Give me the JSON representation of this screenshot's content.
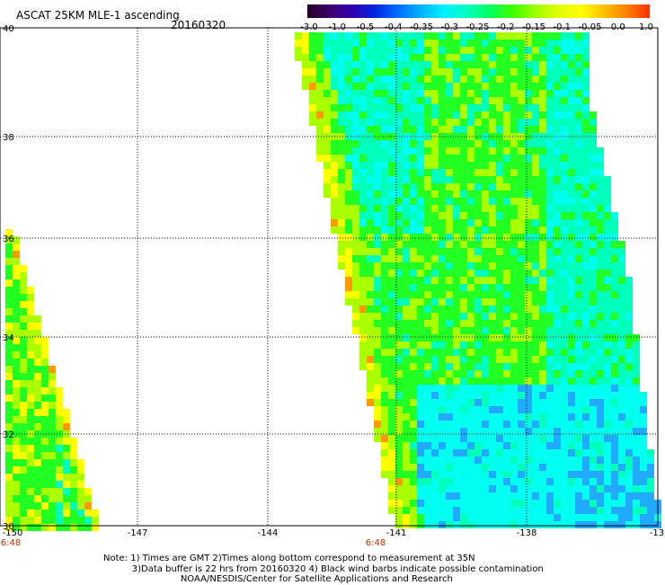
{
  "header": {
    "title": "ASCAT 25KM MLE-1 ascending",
    "date": "20160320"
  },
  "colorbar": {
    "labels": [
      "-3.0",
      "-1.0",
      "-0.5",
      "-0.4",
      "-0.35",
      "-0.3",
      "-0.25",
      "-0.2",
      "-0.15",
      "-0.1",
      "-0.05",
      "0.0",
      "1.0"
    ],
    "colors": [
      "#200020",
      "#400070",
      "#3000b0",
      "#0028e0",
      "#0070ff",
      "#00b4ff",
      "#00f0ff",
      "#00ffc0",
      "#00ff60",
      "#40ff00",
      "#a0ff00",
      "#e0ff00",
      "#ffff00",
      "#ffc000",
      "#ff8000",
      "#ff3000"
    ]
  },
  "axes": {
    "lat_labels": [
      "40",
      "38",
      "36",
      "34",
      "32",
      "30"
    ],
    "lon_labels": [
      "-150",
      "-147",
      "-144",
      "-141",
      "-138",
      "-13"
    ],
    "time_labels": [
      "6:48",
      "6:48"
    ]
  },
  "palette": {
    "cyan": "#00ffee",
    "aqua": "#00ffbb",
    "green": "#22ff22",
    "lime": "#aaff00",
    "yellow": "#ffff00",
    "orange": "#ff9900",
    "blue": "#22aaff"
  },
  "notes": {
    "line1": "Note: 1) Times are GMT 2)Times along bottom correspond to measurement at 35N",
    "line2": "3)Data buffer is 22 hrs from 20160320 4) Black wind barbs indicate possible contamination",
    "line3": "NOAA/NESDIS/Center for Satellite Applications and Research"
  }
}
